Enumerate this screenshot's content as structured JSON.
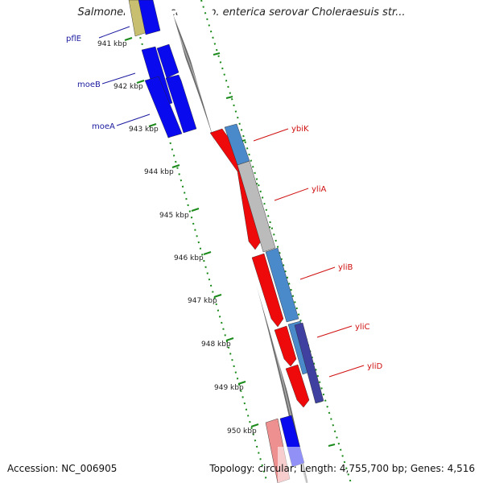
{
  "title": "Salmonella enterica subsp. enterica serovar Choleraesuis str...",
  "colors": {
    "backbone": "#808080",
    "tick_green": "#1a8a1a",
    "forward_blue": "#0a0aee",
    "steel_blue": "#4a8acb",
    "reverse_red": "#ee0a0a",
    "gray_band": "#bbbbbb",
    "purple": "#4040a0",
    "khaki": "#c8c070",
    "pink": "#ee9090"
  },
  "kbp_labels": [
    "941 kbp",
    "942 kbp",
    "943 kbp",
    "944 kbp",
    "945 kbp",
    "946 kbp",
    "947 kbp",
    "948 kbp",
    "949 kbp",
    "950 kbp"
  ],
  "genes_left": [
    "pflE",
    "moeB",
    "moeA"
  ],
  "genes_right": [
    "ybiK",
    "yliA",
    "yliB",
    "yliC",
    "yliD"
  ],
  "footer": {
    "accession": "Accession: NC_006905",
    "stats": "Topology: circular; Length: 4,755,700 bp; Genes: 4,516"
  }
}
